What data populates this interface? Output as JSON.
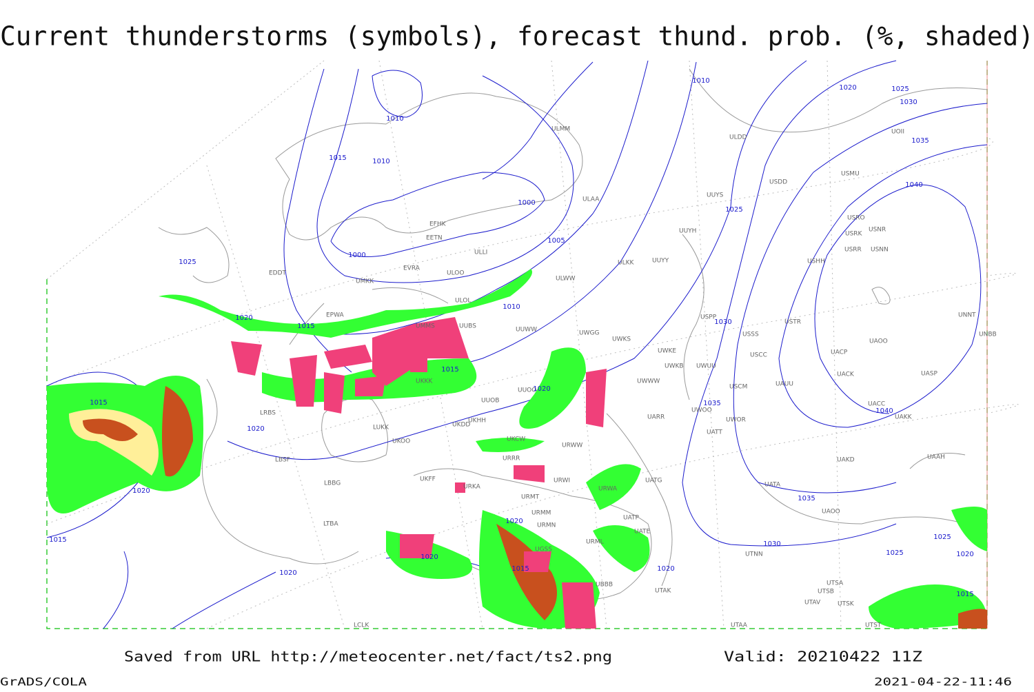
{
  "header": {
    "title": "Current thunderstorms (symbols), forecast thund. prob. (%, shaded)"
  },
  "footer": {
    "source": "Saved from URL http://meteocenter.net/fact/ts2.png",
    "valid": "Valid: 20210422 11Z",
    "software": "GrADS/COLA",
    "timestamp": "2021-04-22-11:46"
  },
  "map": {
    "isobar_labels": [
      "1010",
      "1020",
      "1025",
      "1030",
      "1035",
      "1040",
      "1010",
      "1015",
      "1010",
      "1000",
      "1005",
      "1000",
      "1025",
      "1025",
      "1030",
      "1020",
      "1015",
      "1010",
      "1015",
      "1020",
      "1020",
      "1015",
      "1020",
      "1015",
      "1020",
      "1020",
      "1020",
      "1015",
      "1035",
      "1040",
      "1035",
      "1030",
      "1020",
      "1025",
      "1025",
      "1020",
      "1015"
    ],
    "stations": [
      "ULMM",
      "ULDD",
      "UOII",
      "ULAA",
      "EFHK",
      "EETN",
      "ULLI",
      "EVRA",
      "ULOO",
      "UMKK",
      "EDDT",
      "EPWA",
      "UMMS",
      "UUBS",
      "UUWW",
      "ULOL",
      "ULWW",
      "ULKK",
      "UUYY",
      "UUYH",
      "UUYS",
      "USDD",
      "USMU",
      "USRO",
      "USRK",
      "USNR",
      "USRR",
      "USNN",
      "USHH",
      "USPP",
      "USTR",
      "USSS",
      "USCC",
      "UWGG",
      "UWKS",
      "UWKE",
      "UWKB",
      "UWUU",
      "UWWW",
      "USCM",
      "UAUU",
      "UACK",
      "UAOO",
      "UACP",
      "UASP",
      "UNNT",
      "UNBB",
      "UACC",
      "UAKK",
      "UWOO",
      "UWOR",
      "UATT",
      "UARR",
      "UAKD",
      "UAAH",
      "UATA",
      "UAOO",
      "UTNN",
      "UTSA",
      "UTSB",
      "UTSK",
      "UTAV",
      "UTAA",
      "UTST",
      "UKKK",
      "UUOB",
      "UUOO",
      "UKHH",
      "UKDD",
      "UKOO",
      "LUKK",
      "LRBS",
      "LBSF",
      "LBBG",
      "UKFF",
      "URKA",
      "URRR",
      "URWI",
      "URMT",
      "URMM",
      "URMN",
      "UGSS",
      "URWA",
      "UATG",
      "UATP",
      "UATE",
      "URML",
      "UBBB",
      "UTAK",
      "LTBA",
      "LCLK",
      "UKCW",
      "URWW"
    ]
  }
}
